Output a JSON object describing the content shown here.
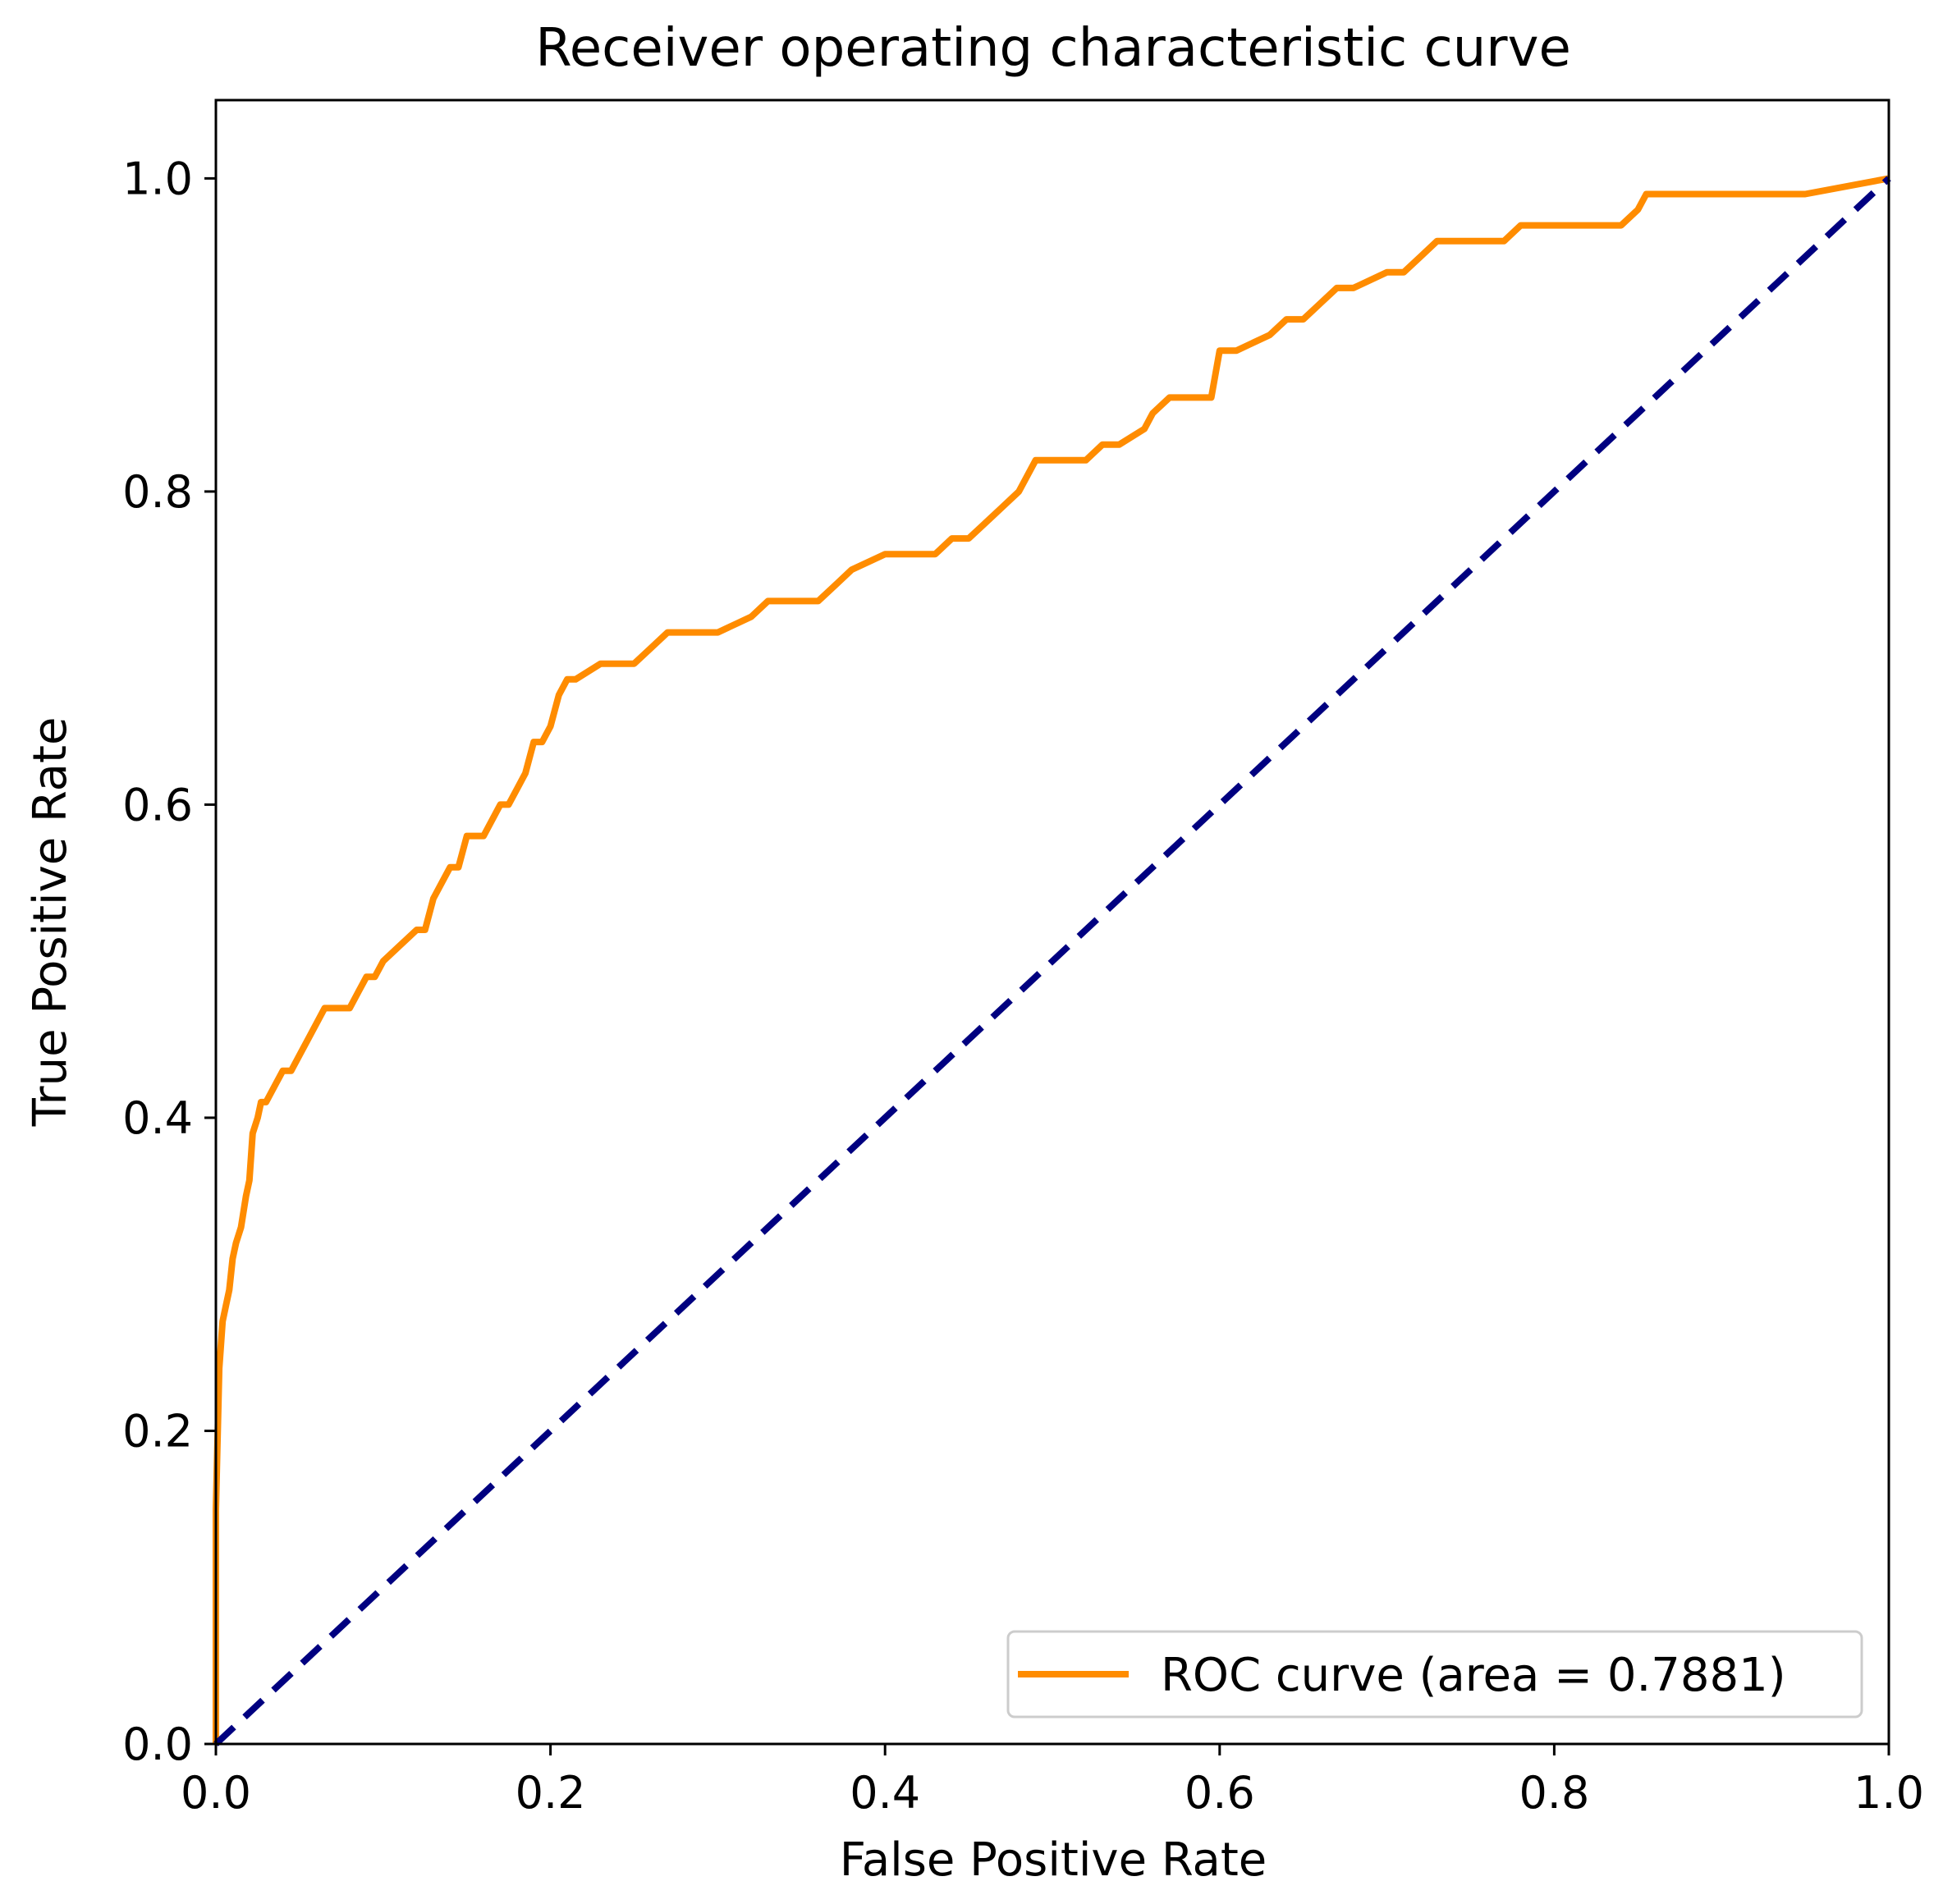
{
  "chart_data": {
    "type": "line",
    "title": "Receiver operating characteristic curve",
    "xlabel": "False Positive Rate",
    "ylabel": "True Positive Rate",
    "xlim": [
      0.0,
      1.0
    ],
    "ylim": [
      0.0,
      1.05
    ],
    "xticks": [
      "0.0",
      "0.2",
      "0.4",
      "0.6",
      "0.8",
      "1.0"
    ],
    "yticks": [
      "0.0",
      "0.2",
      "0.4",
      "0.6",
      "0.8",
      "1.0"
    ],
    "grid": false,
    "legend_position": "lower-right",
    "series": [
      {
        "name": "ROC curve (area = 0.7881)",
        "color": "#ff8c00",
        "line_style": "solid",
        "x": [
          0.0,
          0.0,
          0.002,
          0.004,
          0.006,
          0.008,
          0.01,
          0.012,
          0.015,
          0.018,
          0.02,
          0.022,
          0.025,
          0.027,
          0.03,
          0.035,
          0.04,
          0.045,
          0.05,
          0.055,
          0.06,
          0.065,
          0.07,
          0.08,
          0.085,
          0.09,
          0.095,
          0.1,
          0.11,
          0.12,
          0.125,
          0.13,
          0.135,
          0.14,
          0.145,
          0.15,
          0.16,
          0.165,
          0.17,
          0.175,
          0.18,
          0.185,
          0.19,
          0.195,
          0.2,
          0.205,
          0.21,
          0.215,
          0.23,
          0.25,
          0.26,
          0.27,
          0.3,
          0.32,
          0.33,
          0.36,
          0.37,
          0.38,
          0.4,
          0.43,
          0.44,
          0.45,
          0.46,
          0.47,
          0.48,
          0.49,
          0.52,
          0.53,
          0.54,
          0.555,
          0.56,
          0.57,
          0.595,
          0.6,
          0.61,
          0.63,
          0.64,
          0.65,
          0.66,
          0.67,
          0.68,
          0.7,
          0.71,
          0.72,
          0.73,
          0.75,
          0.77,
          0.78,
          0.8,
          0.84,
          0.85,
          0.855,
          0.87,
          0.9,
          0.95,
          1.0
        ],
        "y": [
          0.0,
          0.15,
          0.24,
          0.27,
          0.28,
          0.29,
          0.31,
          0.32,
          0.33,
          0.35,
          0.36,
          0.39,
          0.4,
          0.41,
          0.41,
          0.42,
          0.43,
          0.43,
          0.44,
          0.45,
          0.46,
          0.47,
          0.47,
          0.47,
          0.48,
          0.49,
          0.49,
          0.5,
          0.51,
          0.52,
          0.52,
          0.54,
          0.55,
          0.56,
          0.56,
          0.58,
          0.58,
          0.59,
          0.6,
          0.6,
          0.61,
          0.62,
          0.64,
          0.64,
          0.65,
          0.67,
          0.68,
          0.68,
          0.69,
          0.69,
          0.7,
          0.71,
          0.71,
          0.72,
          0.73,
          0.73,
          0.74,
          0.75,
          0.76,
          0.76,
          0.77,
          0.77,
          0.78,
          0.79,
          0.8,
          0.82,
          0.82,
          0.83,
          0.83,
          0.84,
          0.85,
          0.86,
          0.86,
          0.89,
          0.89,
          0.9,
          0.91,
          0.91,
          0.92,
          0.93,
          0.93,
          0.94,
          0.94,
          0.95,
          0.96,
          0.96,
          0.96,
          0.97,
          0.97,
          0.97,
          0.98,
          0.99,
          0.99,
          0.99,
          0.99,
          1.0
        ]
      },
      {
        "name": "",
        "color": "#000080",
        "line_style": "dashed",
        "x": [
          0.0,
          1.0
        ],
        "y": [
          0.0,
          1.0
        ]
      }
    ]
  }
}
